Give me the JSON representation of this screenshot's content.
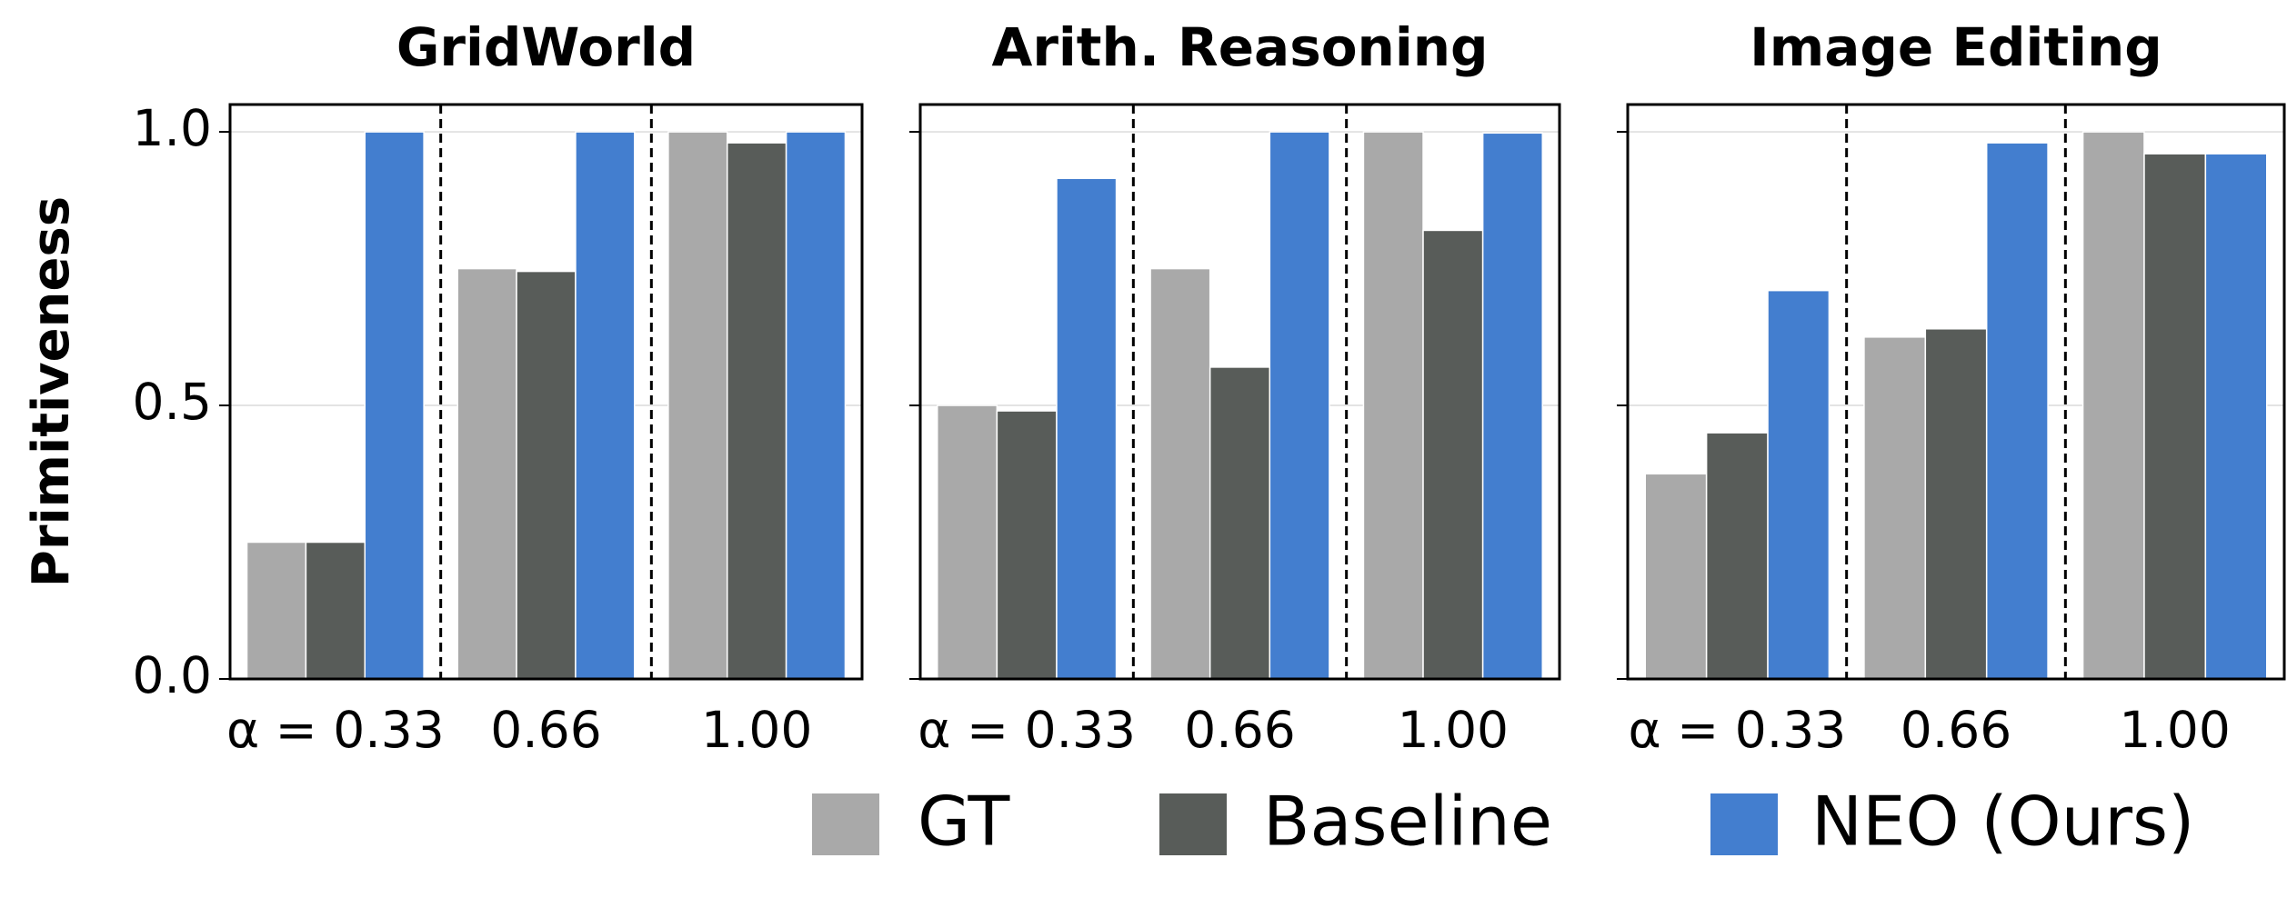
{
  "chart_data": [
    {
      "type": "bar",
      "title": "GridWorld",
      "ylabel": "Primitiveness",
      "categories": [
        "α = 0.33",
        "0.66",
        "1.00"
      ],
      "series": [
        {
          "name": "GT",
          "color": "#a9a9a9",
          "values": [
            0.25,
            0.75,
            1.0
          ]
        },
        {
          "name": "Baseline",
          "color": "#585c59",
          "values": [
            0.25,
            0.745,
            0.98
          ]
        },
        {
          "name": "NEO  (Ours)",
          "color": "#437ecf",
          "values": [
            1.0,
            1.0,
            1.0
          ]
        }
      ],
      "ylim": [
        0,
        1.05
      ],
      "yticks": [
        {
          "value": 0,
          "label": "0.0"
        },
        {
          "value": 0.5,
          "label": "0.5"
        },
        {
          "value": 1,
          "label": "1.0"
        }
      ],
      "grid": true
    },
    {
      "type": "bar",
      "title": "Arith. Reasoning",
      "categories": [
        "α = 0.33",
        "0.66",
        "1.00"
      ],
      "series": [
        {
          "color": "#a9a9a9",
          "values": [
            0.5,
            0.75,
            1.0
          ]
        },
        {
          "color": "#585c59",
          "values": [
            0.49,
            0.57,
            0.82
          ]
        },
        {
          "color": "#437ecf",
          "values": [
            0.915,
            1.0,
            0.998
          ]
        }
      ],
      "ylim": [
        0,
        1.05
      ],
      "yticks": [
        0,
        0.5,
        1
      ],
      "grid": true
    },
    {
      "type": "bar",
      "title": "Image Editing",
      "categories": [
        "α = 0.33",
        "0.66",
        "1.00"
      ],
      "series": [
        {
          "color": "#a9a9a9",
          "values": [
            0.375,
            0.625,
            1.0
          ]
        },
        {
          "color": "#585c59",
          "values": [
            0.45,
            0.64,
            0.96
          ]
        },
        {
          "color": "#437ecf",
          "values": [
            0.71,
            0.98,
            0.96
          ]
        }
      ],
      "ylim": [
        0,
        1.05
      ],
      "yticks": [
        0,
        0.5,
        1
      ],
      "grid": true
    }
  ]
}
